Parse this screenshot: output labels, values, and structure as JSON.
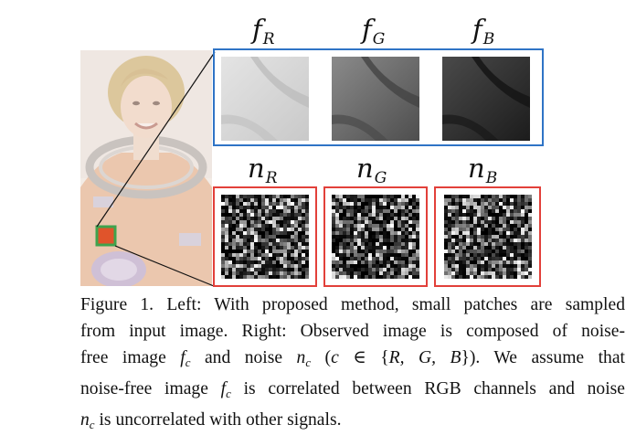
{
  "figure": {
    "top_labels": [
      {
        "base": "f",
        "sub": "R"
      },
      {
        "base": "f",
        "sub": "G"
      },
      {
        "base": "f",
        "sub": "B"
      }
    ],
    "bottom_labels": [
      {
        "base": "n",
        "sub": "R"
      },
      {
        "base": "n",
        "sub": "G"
      },
      {
        "base": "n",
        "sub": "B"
      }
    ],
    "colors": {
      "noise_free_box": "#2f74c6",
      "noise_box": "#e2403a",
      "selected_patch": "#3fa34d"
    }
  },
  "caption": {
    "lines": [
      [
        {
          "t": "Figure 1.  Left: With proposed method, small patches are sampled"
        }
      ],
      [
        {
          "t": "from input image.  Right: Observed image is composed of noise-"
        }
      ],
      [
        {
          "t": "free image "
        },
        {
          "m": "f",
          "s": "c"
        },
        {
          "t": " and noise "
        },
        {
          "m": "n",
          "s": "c"
        },
        {
          "t": " ("
        },
        {
          "m": "c"
        },
        {
          "t": " ∈ {"
        },
        {
          "m": "R, G, B"
        },
        {
          "t": "}).  We assume that"
        }
      ],
      [
        {
          "t": "noise-free image "
        },
        {
          "m": "f",
          "s": "c"
        },
        {
          "t": " is correlated between RGB channels and noise"
        }
      ],
      [
        {
          "m": "n",
          "s": "c"
        },
        {
          "t": " is uncorrelated with other signals."
        }
      ]
    ]
  }
}
